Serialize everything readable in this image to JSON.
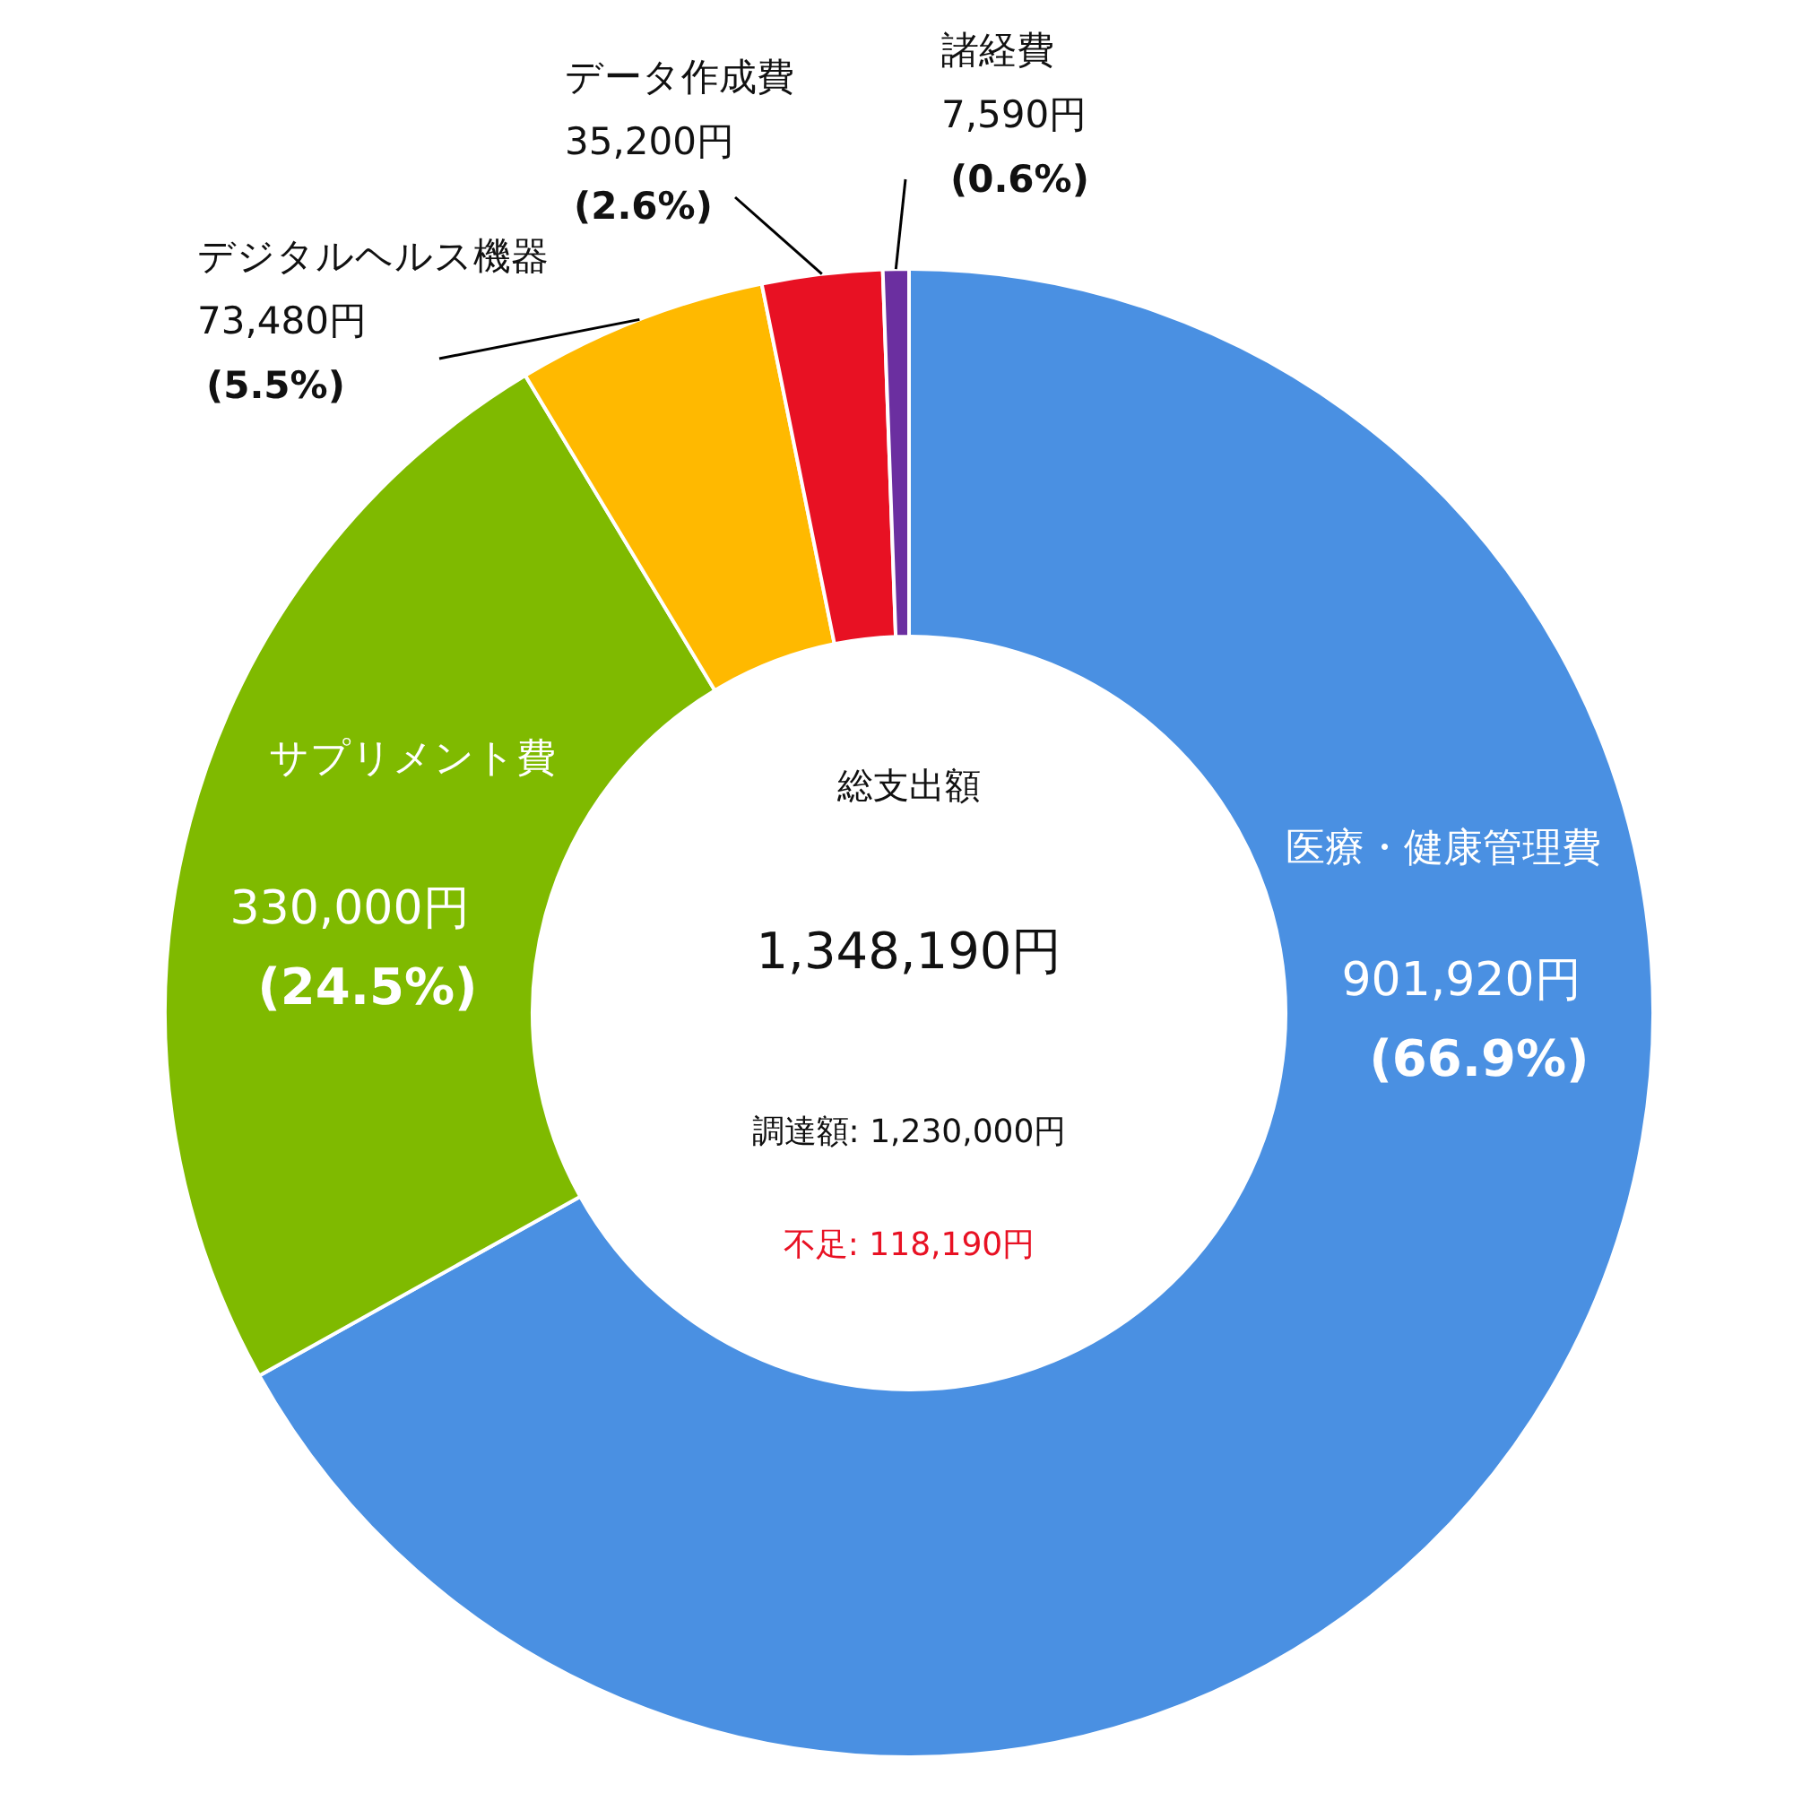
{
  "chart_data": {
    "type": "donut",
    "categories": [
      "医療・健康管理費",
      "サプリメント費",
      "デジタルヘルス機器",
      "データ作成費",
      "諸経費"
    ],
    "values": [
      901920,
      330000,
      73480,
      35200,
      7590
    ],
    "colors": [
      "#4a90e2",
      "#7fba00",
      "#ffb900",
      "#e81123",
      "#6b2fa0"
    ],
    "value_labels": [
      "901,920円\n(66.9%)",
      "330,000円\n(24.5%)",
      "73,480円\n(5.5%)",
      "35,200円\n(2.6%)",
      "7,590円\n(0.6%)"
    ],
    "annotations": [
      "総支出額",
      "1,348,190円",
      "調達額: 1,230,000円",
      "不足: 118,190円"
    ]
  }
}
